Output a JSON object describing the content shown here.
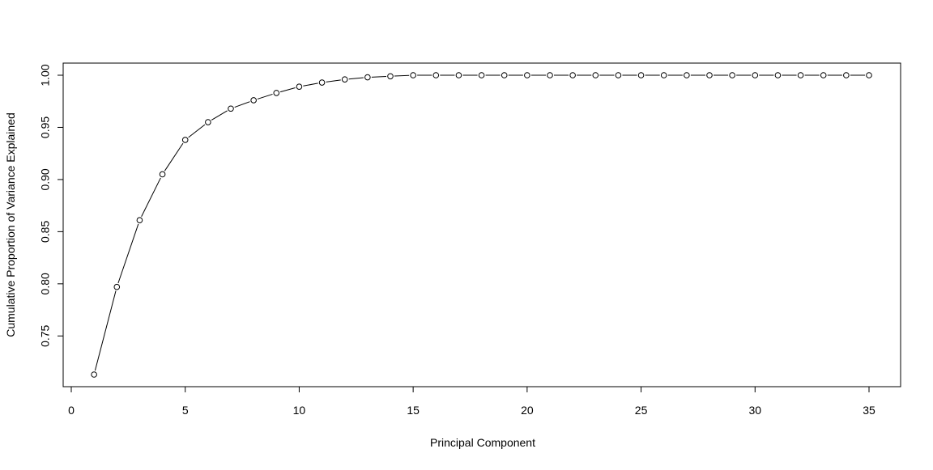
{
  "chart_data": {
    "type": "line",
    "title": "",
    "xlabel": "Principal Component",
    "ylabel": "Cumulative Proportion of Variance Explained",
    "xlim": [
      0,
      35
    ],
    "ylim": [
      0.713,
      1.0
    ],
    "x_ticks": [
      0,
      5,
      10,
      15,
      20,
      25,
      30,
      35
    ],
    "y_ticks": [
      0.75,
      0.8,
      0.85,
      0.9,
      0.95,
      1.0
    ],
    "y_tick_labels": [
      "0.75",
      "0.80",
      "0.85",
      "0.90",
      "0.95",
      "1.00"
    ],
    "grid": false,
    "marker": "open-circle",
    "line_style": "lines-and-points",
    "color": "#000000",
    "series": [
      {
        "x": [
          1,
          2,
          3,
          4,
          5,
          6,
          7,
          8,
          9,
          10,
          11,
          12,
          13,
          14,
          15,
          16,
          17,
          18,
          19,
          20,
          21,
          22,
          23,
          24,
          25,
          26,
          27,
          28,
          29,
          30,
          31,
          32,
          33,
          34,
          35
        ],
        "values": [
          0.713,
          0.797,
          0.861,
          0.905,
          0.938,
          0.955,
          0.968,
          0.976,
          0.983,
          0.989,
          0.993,
          0.996,
          0.998,
          0.999,
          1.0,
          1.0,
          1.0,
          1.0,
          1.0,
          1.0,
          1.0,
          1.0,
          1.0,
          1.0,
          1.0,
          1.0,
          1.0,
          1.0,
          1.0,
          1.0,
          1.0,
          1.0,
          1.0,
          1.0,
          1.0
        ]
      }
    ]
  }
}
